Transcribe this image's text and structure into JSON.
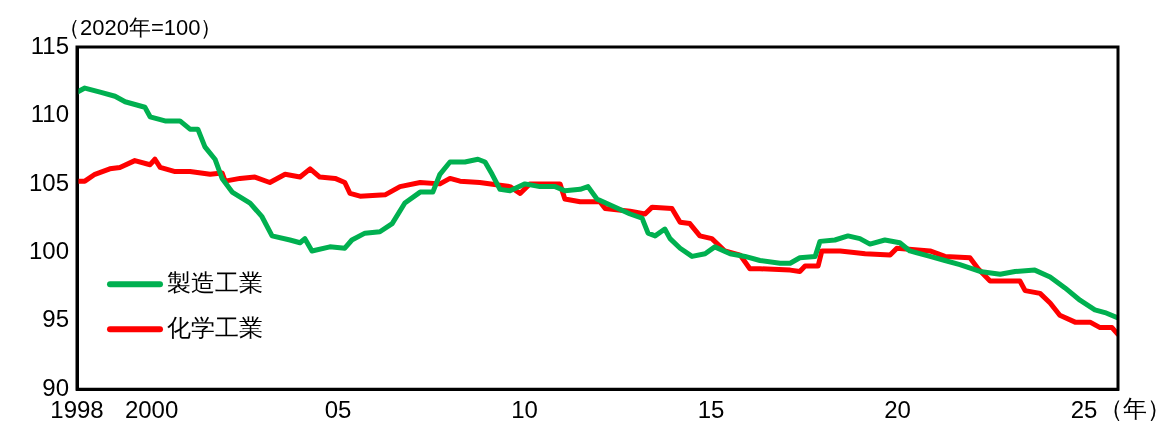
{
  "chart_data": {
    "type": "line",
    "ylabel": "（2020年=100）",
    "xlabel": "（年）",
    "xlim": [
      1998,
      2025.91
    ],
    "xticks": [
      {
        "value": 1998,
        "label": "1998"
      },
      {
        "value": 2000,
        "label": "2000"
      },
      {
        "value": 2005,
        "label": "05"
      },
      {
        "value": 2010,
        "label": "10"
      },
      {
        "value": 2015,
        "label": "15"
      },
      {
        "value": 2020,
        "label": "20"
      },
      {
        "value": 2025,
        "label": "25"
      }
    ],
    "ylim": [
      90,
      115
    ],
    "yticks": [
      90,
      95,
      100,
      105,
      110,
      115
    ],
    "grid": false,
    "legend": "bottom left",
    "marker": "none",
    "line_style": "solid",
    "series": [
      {
        "name": "製造工業",
        "color": "#00b050",
        "x": [
          1998.0,
          1998.21,
          1998.62,
          1999.02,
          1999.29,
          1999.82,
          1999.96,
          2000.36,
          2000.76,
          2001.03,
          2001.24,
          2001.43,
          2001.7,
          2001.89,
          2002.16,
          2002.64,
          2002.96,
          2003.23,
          2003.71,
          2003.98,
          2004.11,
          2004.3,
          2004.78,
          2005.18,
          2005.37,
          2005.72,
          2006.12,
          2006.45,
          2006.79,
          2007.2,
          2007.54,
          2007.73,
          2008.0,
          2008.4,
          2008.75,
          2008.94,
          2009.13,
          2009.34,
          2009.61,
          2010.01,
          2010.41,
          2010.82,
          2011.08,
          2011.49,
          2011.7,
          2011.94,
          2012.34,
          2012.83,
          2013.15,
          2013.31,
          2013.5,
          2013.76,
          2013.9,
          2014.17,
          2014.49,
          2014.84,
          2015.1,
          2015.51,
          2015.91,
          2016.31,
          2016.85,
          2017.12,
          2017.38,
          2017.79,
          2017.92,
          2018.32,
          2018.67,
          2018.99,
          2019.26,
          2019.66,
          2020.06,
          2020.33,
          2020.87,
          2021.27,
          2021.67,
          2022.21,
          2022.75,
          2023.15,
          2023.68,
          2024.09,
          2024.49,
          2024.89,
          2025.29,
          2025.56,
          2025.91
        ],
        "values": [
          111.7,
          112.0,
          111.7,
          111.4,
          111.0,
          110.6,
          109.9,
          109.6,
          109.6,
          109.0,
          109.0,
          107.7,
          106.8,
          105.4,
          104.4,
          103.6,
          102.6,
          101.2,
          100.9,
          100.7,
          101.0,
          100.1,
          100.4,
          100.3,
          100.9,
          101.4,
          101.5,
          102.1,
          103.6,
          104.4,
          104.4,
          105.7,
          106.6,
          106.6,
          106.8,
          106.6,
          105.7,
          104.6,
          104.5,
          105.0,
          104.8,
          104.8,
          104.5,
          104.6,
          104.8,
          103.9,
          103.4,
          102.8,
          102.5,
          101.4,
          101.2,
          101.7,
          101.0,
          100.3,
          99.7,
          99.9,
          100.4,
          99.9,
          99.7,
          99.4,
          99.2,
          99.2,
          99.6,
          99.7,
          100.8,
          100.9,
          101.2,
          101.0,
          100.6,
          100.9,
          100.7,
          100.1,
          99.7,
          99.4,
          99.1,
          98.6,
          98.4,
          98.6,
          98.7,
          98.2,
          97.4,
          96.5,
          95.8,
          95.6,
          95.2
        ]
      },
      {
        "name": "化学工業",
        "color": "#ff0000",
        "x": [
          1998.0,
          1998.21,
          1998.48,
          1998.88,
          1999.15,
          1999.55,
          1999.96,
          2000.09,
          2000.23,
          2000.63,
          2001.03,
          2001.57,
          2001.89,
          2001.97,
          2002.37,
          2002.77,
          2003.17,
          2003.58,
          2003.98,
          2004.25,
          2004.51,
          2004.92,
          2005.18,
          2005.32,
          2005.59,
          2006.26,
          2006.66,
          2007.2,
          2007.73,
          2008.0,
          2008.27,
          2008.8,
          2009.34,
          2009.61,
          2009.88,
          2010.14,
          2010.55,
          2010.95,
          2011.08,
          2011.49,
          2012.02,
          2012.16,
          2012.83,
          2013.23,
          2013.42,
          2013.95,
          2014.17,
          2014.43,
          2014.7,
          2015.02,
          2015.37,
          2015.78,
          2016.04,
          2016.31,
          2017.12,
          2017.38,
          2017.52,
          2017.87,
          2017.97,
          2018.46,
          2019.13,
          2019.8,
          2019.98,
          2020.87,
          2021.27,
          2021.94,
          2022.16,
          2022.48,
          2023.28,
          2023.42,
          2023.82,
          2024.09,
          2024.35,
          2024.76,
          2025.16,
          2025.43,
          2025.75,
          2025.91
        ],
        "values": [
          105.2,
          105.2,
          105.7,
          106.1,
          106.2,
          106.7,
          106.4,
          106.8,
          106.2,
          105.9,
          105.9,
          105.7,
          105.8,
          105.2,
          105.4,
          105.5,
          105.1,
          105.7,
          105.5,
          106.1,
          105.5,
          105.4,
          105.1,
          104.3,
          104.1,
          104.2,
          104.8,
          105.1,
          105.0,
          105.4,
          105.2,
          105.1,
          104.9,
          104.8,
          104.3,
          105.0,
          105.0,
          105.0,
          103.9,
          103.7,
          103.7,
          103.2,
          103.0,
          102.8,
          103.3,
          103.2,
          102.2,
          102.1,
          101.2,
          101.0,
          100.1,
          99.8,
          98.8,
          98.8,
          98.7,
          98.6,
          99.0,
          99.0,
          100.1,
          100.1,
          99.9,
          99.8,
          100.3,
          100.1,
          99.7,
          99.6,
          98.8,
          97.9,
          97.9,
          97.2,
          97.0,
          96.3,
          95.4,
          94.9,
          94.9,
          94.5,
          94.5,
          94.0
        ]
      }
    ]
  }
}
